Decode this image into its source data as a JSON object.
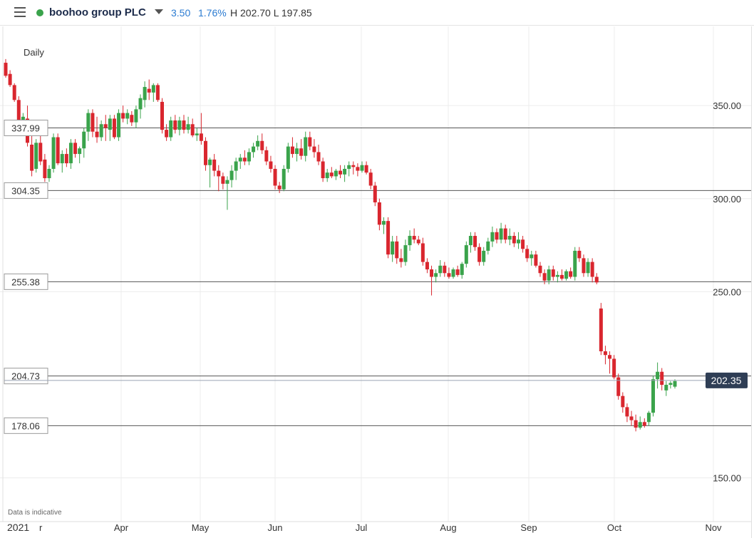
{
  "header": {
    "menu_icon": "hamburger-menu-icon",
    "status_color": "#3aa34b",
    "instrument": "boohoo group PLC",
    "dropdown_icon": "caret-down-icon",
    "change_abs": "3.50",
    "change_pct": "1.76%",
    "high_low": "H 202.70  L 197.85"
  },
  "chart_data": {
    "type": "candlestick",
    "interval_label": "Daily",
    "footnote": "Data is indicative",
    "price_axis": {
      "ticks": [
        350,
        300,
        250,
        150
      ],
      "tick_labels": [
        "350.00",
        "300.00",
        "250.00",
        "150.00"
      ],
      "range": [
        138,
        378
      ]
    },
    "time_axis": {
      "labels": [
        "2021",
        "r",
        "Apr",
        "May",
        "Jun",
        "Jul",
        "Aug",
        "Sep",
        "Oct",
        "Nov"
      ]
    },
    "levels": [
      {
        "value": 337.99,
        "label": "337.99"
      },
      {
        "value": 304.35,
        "label": "304.35"
      },
      {
        "value": 255.38,
        "label": "255.38"
      },
      {
        "value": 204.73,
        "label": "204.73"
      },
      {
        "value": 178.06,
        "label": "178.06"
      }
    ],
    "last_price": {
      "value": 202.35,
      "label": "202.35",
      "color": "#2f3e55"
    },
    "colors": {
      "up": "#3aa34b",
      "down": "#d9262e",
      "grid": "#ececec",
      "level": "#555555"
    },
    "candles": [
      {
        "o": 373,
        "h": 375,
        "l": 365,
        "c": 366
      },
      {
        "o": 367,
        "h": 369,
        "l": 360,
        "c": 361
      },
      {
        "o": 361,
        "h": 362,
        "l": 352,
        "c": 353
      },
      {
        "o": 353,
        "h": 355,
        "l": 338,
        "c": 340
      },
      {
        "o": 340,
        "h": 346,
        "l": 335,
        "c": 344
      },
      {
        "o": 343,
        "h": 350,
        "l": 328,
        "c": 330
      },
      {
        "o": 329,
        "h": 335,
        "l": 312,
        "c": 315
      },
      {
        "o": 316,
        "h": 332,
        "l": 314,
        "c": 330
      },
      {
        "o": 330,
        "h": 336,
        "l": 318,
        "c": 320
      },
      {
        "o": 321,
        "h": 324,
        "l": 309,
        "c": 311
      },
      {
        "o": 311,
        "h": 318,
        "l": 309,
        "c": 316
      },
      {
        "o": 316,
        "h": 335,
        "l": 314,
        "c": 333
      },
      {
        "o": 333,
        "h": 335,
        "l": 318,
        "c": 319
      },
      {
        "o": 319,
        "h": 326,
        "l": 314,
        "c": 324
      },
      {
        "o": 324,
        "h": 327,
        "l": 317,
        "c": 319
      },
      {
        "o": 319,
        "h": 332,
        "l": 316,
        "c": 330
      },
      {
        "o": 330,
        "h": 332,
        "l": 322,
        "c": 324
      },
      {
        "o": 324,
        "h": 328,
        "l": 319,
        "c": 327
      },
      {
        "o": 327,
        "h": 338,
        "l": 322,
        "c": 336
      },
      {
        "o": 336,
        "h": 348,
        "l": 331,
        "c": 346
      },
      {
        "o": 346,
        "h": 348,
        "l": 333,
        "c": 336
      },
      {
        "o": 336,
        "h": 344,
        "l": 330,
        "c": 333
      },
      {
        "o": 333,
        "h": 342,
        "l": 331,
        "c": 340
      },
      {
        "o": 340,
        "h": 345,
        "l": 331,
        "c": 338
      },
      {
        "o": 337,
        "h": 345,
        "l": 331,
        "c": 343
      },
      {
        "o": 343,
        "h": 345,
        "l": 332,
        "c": 333
      },
      {
        "o": 333,
        "h": 348,
        "l": 331,
        "c": 346
      },
      {
        "o": 346,
        "h": 350,
        "l": 341,
        "c": 343
      },
      {
        "o": 343,
        "h": 348,
        "l": 340,
        "c": 346
      },
      {
        "o": 345,
        "h": 347,
        "l": 339,
        "c": 341
      },
      {
        "o": 341,
        "h": 350,
        "l": 338,
        "c": 348
      },
      {
        "o": 348,
        "h": 356,
        "l": 343,
        "c": 354
      },
      {
        "o": 353,
        "h": 363,
        "l": 349,
        "c": 360
      },
      {
        "o": 359,
        "h": 364,
        "l": 353,
        "c": 357
      },
      {
        "o": 357,
        "h": 362,
        "l": 352,
        "c": 361
      },
      {
        "o": 361,
        "h": 362,
        "l": 352,
        "c": 353
      },
      {
        "o": 352,
        "h": 354,
        "l": 335,
        "c": 337
      },
      {
        "o": 337,
        "h": 340,
        "l": 331,
        "c": 333
      },
      {
        "o": 333,
        "h": 344,
        "l": 331,
        "c": 342
      },
      {
        "o": 342,
        "h": 345,
        "l": 335,
        "c": 337
      },
      {
        "o": 337,
        "h": 344,
        "l": 334,
        "c": 342
      },
      {
        "o": 342,
        "h": 345,
        "l": 335,
        "c": 337
      },
      {
        "o": 337,
        "h": 344,
        "l": 335,
        "c": 340
      },
      {
        "o": 340,
        "h": 343,
        "l": 333,
        "c": 334
      },
      {
        "o": 334,
        "h": 338,
        "l": 331,
        "c": 335
      },
      {
        "o": 335,
        "h": 346,
        "l": 329,
        "c": 331
      },
      {
        "o": 331,
        "h": 333,
        "l": 315,
        "c": 318
      },
      {
        "o": 318,
        "h": 322,
        "l": 306,
        "c": 321
      },
      {
        "o": 321,
        "h": 324,
        "l": 312,
        "c": 315
      },
      {
        "o": 315,
        "h": 318,
        "l": 304,
        "c": 312
      },
      {
        "o": 312,
        "h": 314,
        "l": 305,
        "c": 308
      },
      {
        "o": 308,
        "h": 312,
        "l": 294,
        "c": 310
      },
      {
        "o": 310,
        "h": 318,
        "l": 306,
        "c": 315
      },
      {
        "o": 315,
        "h": 322,
        "l": 310,
        "c": 320
      },
      {
        "o": 320,
        "h": 324,
        "l": 316,
        "c": 322
      },
      {
        "o": 322,
        "h": 326,
        "l": 318,
        "c": 320
      },
      {
        "o": 320,
        "h": 327,
        "l": 318,
        "c": 325
      },
      {
        "o": 325,
        "h": 330,
        "l": 322,
        "c": 328
      },
      {
        "o": 328,
        "h": 334,
        "l": 326,
        "c": 331
      },
      {
        "o": 331,
        "h": 335,
        "l": 324,
        "c": 326
      },
      {
        "o": 326,
        "h": 328,
        "l": 318,
        "c": 320
      },
      {
        "o": 320,
        "h": 323,
        "l": 314,
        "c": 316
      },
      {
        "o": 316,
        "h": 318,
        "l": 305,
        "c": 307
      },
      {
        "o": 307,
        "h": 309,
        "l": 303,
        "c": 305
      },
      {
        "o": 305,
        "h": 318,
        "l": 304,
        "c": 316
      },
      {
        "o": 316,
        "h": 330,
        "l": 314,
        "c": 328
      },
      {
        "o": 328,
        "h": 333,
        "l": 322,
        "c": 324
      },
      {
        "o": 324,
        "h": 330,
        "l": 320,
        "c": 327
      },
      {
        "o": 327,
        "h": 332,
        "l": 321,
        "c": 323
      },
      {
        "o": 323,
        "h": 336,
        "l": 320,
        "c": 333
      },
      {
        "o": 333,
        "h": 336,
        "l": 326,
        "c": 328
      },
      {
        "o": 328,
        "h": 332,
        "l": 322,
        "c": 325
      },
      {
        "o": 325,
        "h": 329,
        "l": 318,
        "c": 320
      },
      {
        "o": 320,
        "h": 322,
        "l": 309,
        "c": 311
      },
      {
        "o": 311,
        "h": 316,
        "l": 309,
        "c": 314
      },
      {
        "o": 314,
        "h": 317,
        "l": 311,
        "c": 312
      },
      {
        "o": 312,
        "h": 316,
        "l": 310,
        "c": 315
      },
      {
        "o": 315,
        "h": 318,
        "l": 311,
        "c": 313
      },
      {
        "o": 313,
        "h": 318,
        "l": 309,
        "c": 316
      },
      {
        "o": 316,
        "h": 320,
        "l": 312,
        "c": 318
      },
      {
        "o": 318,
        "h": 320,
        "l": 313,
        "c": 317
      },
      {
        "o": 317,
        "h": 319,
        "l": 312,
        "c": 315
      },
      {
        "o": 315,
        "h": 320,
        "l": 314,
        "c": 318
      },
      {
        "o": 318,
        "h": 320,
        "l": 313,
        "c": 314
      },
      {
        "o": 314,
        "h": 316,
        "l": 305,
        "c": 307
      },
      {
        "o": 307,
        "h": 309,
        "l": 296,
        "c": 298
      },
      {
        "o": 298,
        "h": 300,
        "l": 283,
        "c": 286
      },
      {
        "o": 286,
        "h": 290,
        "l": 281,
        "c": 288
      },
      {
        "o": 288,
        "h": 290,
        "l": 268,
        "c": 270
      },
      {
        "o": 270,
        "h": 280,
        "l": 266,
        "c": 277
      },
      {
        "o": 277,
        "h": 280,
        "l": 265,
        "c": 268
      },
      {
        "o": 268,
        "h": 273,
        "l": 263,
        "c": 266
      },
      {
        "o": 266,
        "h": 278,
        "l": 264,
        "c": 275
      },
      {
        "o": 275,
        "h": 283,
        "l": 272,
        "c": 280
      },
      {
        "o": 280,
        "h": 284,
        "l": 276,
        "c": 278
      },
      {
        "o": 278,
        "h": 280,
        "l": 275,
        "c": 276
      },
      {
        "o": 276,
        "h": 279,
        "l": 264,
        "c": 266
      },
      {
        "o": 266,
        "h": 268,
        "l": 260,
        "c": 262
      },
      {
        "o": 262,
        "h": 264,
        "l": 248,
        "c": 258
      },
      {
        "o": 258,
        "h": 262,
        "l": 255,
        "c": 260
      },
      {
        "o": 260,
        "h": 267,
        "l": 258,
        "c": 264
      },
      {
        "o": 264,
        "h": 266,
        "l": 258,
        "c": 260
      },
      {
        "o": 260,
        "h": 263,
        "l": 257,
        "c": 258
      },
      {
        "o": 258,
        "h": 263,
        "l": 257,
        "c": 262
      },
      {
        "o": 262,
        "h": 264,
        "l": 258,
        "c": 259
      },
      {
        "o": 259,
        "h": 266,
        "l": 257,
        "c": 265
      },
      {
        "o": 265,
        "h": 277,
        "l": 263,
        "c": 275
      },
      {
        "o": 275,
        "h": 282,
        "l": 271,
        "c": 280
      },
      {
        "o": 280,
        "h": 282,
        "l": 272,
        "c": 274
      },
      {
        "o": 274,
        "h": 276,
        "l": 264,
        "c": 266
      },
      {
        "o": 266,
        "h": 274,
        "l": 264,
        "c": 272
      },
      {
        "o": 272,
        "h": 279,
        "l": 270,
        "c": 277
      },
      {
        "o": 277,
        "h": 285,
        "l": 274,
        "c": 282
      },
      {
        "o": 282,
        "h": 284,
        "l": 276,
        "c": 278
      },
      {
        "o": 278,
        "h": 287,
        "l": 276,
        "c": 284
      },
      {
        "o": 284,
        "h": 286,
        "l": 276,
        "c": 278
      },
      {
        "o": 278,
        "h": 284,
        "l": 275,
        "c": 280
      },
      {
        "o": 280,
        "h": 282,
        "l": 274,
        "c": 276
      },
      {
        "o": 276,
        "h": 282,
        "l": 273,
        "c": 278
      },
      {
        "o": 278,
        "h": 280,
        "l": 271,
        "c": 273
      },
      {
        "o": 273,
        "h": 275,
        "l": 266,
        "c": 268
      },
      {
        "o": 268,
        "h": 272,
        "l": 264,
        "c": 270
      },
      {
        "o": 270,
        "h": 272,
        "l": 263,
        "c": 264
      },
      {
        "o": 264,
        "h": 266,
        "l": 258,
        "c": 260
      },
      {
        "o": 260,
        "h": 262,
        "l": 254,
        "c": 256
      },
      {
        "o": 256,
        "h": 264,
        "l": 254,
        "c": 262
      },
      {
        "o": 262,
        "h": 264,
        "l": 256,
        "c": 258
      },
      {
        "o": 258,
        "h": 261,
        "l": 255,
        "c": 259
      },
      {
        "o": 259,
        "h": 262,
        "l": 256,
        "c": 257
      },
      {
        "o": 257,
        "h": 262,
        "l": 256,
        "c": 261
      },
      {
        "o": 261,
        "h": 263,
        "l": 257,
        "c": 258
      },
      {
        "o": 258,
        "h": 274,
        "l": 256,
        "c": 272
      },
      {
        "o": 272,
        "h": 274,
        "l": 266,
        "c": 268
      },
      {
        "o": 268,
        "h": 270,
        "l": 258,
        "c": 260
      },
      {
        "o": 260,
        "h": 268,
        "l": 258,
        "c": 266
      },
      {
        "o": 266,
        "h": 268,
        "l": 255,
        "c": 258
      },
      {
        "o": 258,
        "h": 260,
        "l": 254,
        "c": 255
      },
      {
        "o": 241,
        "h": 244,
        "l": 216,
        "c": 218
      },
      {
        "o": 218,
        "h": 221,
        "l": 211,
        "c": 216
      },
      {
        "o": 216,
        "h": 218,
        "l": 206,
        "c": 214
      },
      {
        "o": 214,
        "h": 216,
        "l": 203,
        "c": 204
      },
      {
        "o": 204,
        "h": 206,
        "l": 192,
        "c": 194
      },
      {
        "o": 194,
        "h": 196,
        "l": 185,
        "c": 188
      },
      {
        "o": 188,
        "h": 190,
        "l": 180,
        "c": 183
      },
      {
        "o": 183,
        "h": 186,
        "l": 178,
        "c": 181
      },
      {
        "o": 181,
        "h": 184,
        "l": 175,
        "c": 177
      },
      {
        "o": 177,
        "h": 183,
        "l": 176,
        "c": 180
      },
      {
        "o": 180,
        "h": 182,
        "l": 177,
        "c": 178
      },
      {
        "o": 180,
        "h": 186,
        "l": 178,
        "c": 185
      },
      {
        "o": 185,
        "h": 205,
        "l": 183,
        "c": 203
      },
      {
        "o": 203,
        "h": 212,
        "l": 198,
        "c": 207
      },
      {
        "o": 207,
        "h": 209,
        "l": 197,
        "c": 200
      },
      {
        "o": 197,
        "h": 202,
        "l": 194,
        "c": 200
      },
      {
        "o": 200,
        "h": 202,
        "l": 198,
        "c": 201
      },
      {
        "o": 199,
        "h": 203,
        "l": 198,
        "c": 202
      }
    ]
  }
}
